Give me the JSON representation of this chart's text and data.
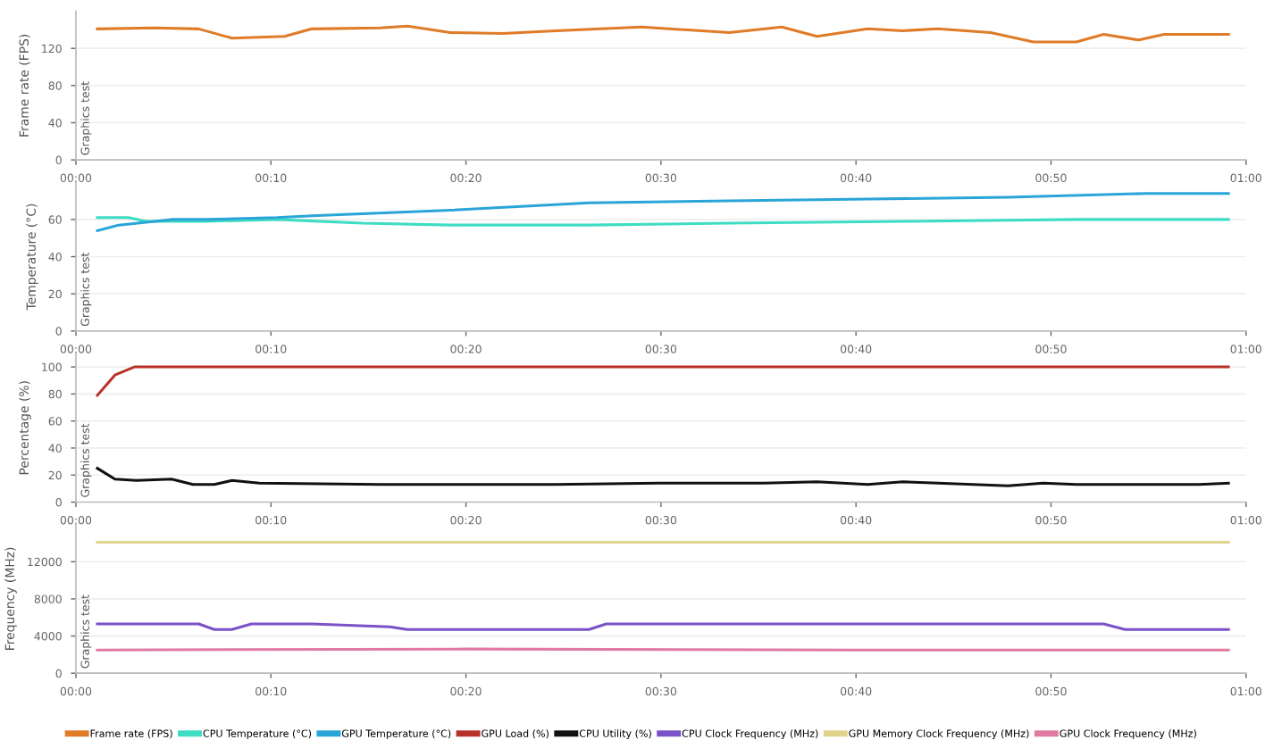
{
  "chart_data": [
    {
      "type": "line",
      "ylabel": "Frame rate (FPS)",
      "annotations": [
        "Graphics test"
      ],
      "xlim": [
        0,
        60
      ],
      "xticks": [
        {
          "value": 0,
          "label": "00:00"
        },
        {
          "value": 10,
          "label": "00:10"
        },
        {
          "value": 20,
          "label": "00:20"
        },
        {
          "value": 30,
          "label": "00:30"
        },
        {
          "value": 40,
          "label": "00:40"
        },
        {
          "value": 50,
          "label": "00:50"
        },
        {
          "value": 60,
          "label": "01:00"
        }
      ],
      "ylim": [
        0,
        160
      ],
      "yticks": [
        0,
        40,
        80,
        120
      ],
      "grid": "y",
      "legend": "bottom",
      "series": [
        {
          "name": "Frame rate (FPS)",
          "color": "#e07b28",
          "x": [
            1.1,
            4.0,
            6.3,
            8.0,
            10.7,
            12.1,
            15.6,
            17.0,
            19.2,
            21.9,
            24.6,
            29.0,
            33.5,
            36.2,
            38.0,
            40.6,
            42.4,
            44.2,
            46.9,
            49.1,
            51.3,
            52.7,
            54.5,
            55.8,
            59.1
          ],
          "values": [
            141,
            142,
            141,
            131,
            133,
            141,
            142,
            144,
            137,
            136,
            139,
            143,
            137,
            143,
            133,
            141,
            139,
            141,
            137,
            127,
            127,
            135,
            129,
            135,
            135
          ]
        }
      ]
    },
    {
      "type": "line",
      "ylabel": "Temperature (°C)",
      "annotations": [
        "Graphics test"
      ],
      "xlim": [
        0,
        60
      ],
      "xticks": [
        {
          "value": 0,
          "label": "00:00"
        },
        {
          "value": 10,
          "label": "00:10"
        },
        {
          "value": 20,
          "label": "00:20"
        },
        {
          "value": 30,
          "label": "00:30"
        },
        {
          "value": 40,
          "label": "00:40"
        },
        {
          "value": 50,
          "label": "00:50"
        },
        {
          "value": 60,
          "label": "01:00"
        }
      ],
      "ylim": [
        0,
        80
      ],
      "yticks": [
        0,
        20,
        40,
        60
      ],
      "grid": "y",
      "legend": "bottom",
      "series": [
        {
          "name": "CPU Temperature (°C)",
          "color": "#3fdcc4",
          "x": [
            1.1,
            2.7,
            3.6,
            6.7,
            10.3,
            14.7,
            19.2,
            26.3,
            33.5,
            42.4,
            51.3,
            59.1
          ],
          "values": [
            61,
            61,
            59,
            59,
            60,
            58,
            57,
            57,
            58,
            59,
            60,
            60
          ]
        },
        {
          "name": "GPU Temperature (°C)",
          "color": "#2aa5d8",
          "x": [
            1.1,
            2.2,
            4.9,
            6.7,
            10.3,
            12.1,
            19.2,
            26.3,
            33.5,
            40.6,
            47.8,
            54.9,
            59.1
          ],
          "values": [
            54,
            57,
            60,
            60,
            61,
            62,
            65,
            69,
            70,
            71,
            72,
            74,
            74
          ]
        }
      ]
    },
    {
      "type": "line",
      "ylabel": "Percentage (%)",
      "annotations": [
        "Graphics test"
      ],
      "xlim": [
        0,
        60
      ],
      "xticks": [
        {
          "value": 0,
          "label": "00:00"
        },
        {
          "value": 10,
          "label": "00:10"
        },
        {
          "value": 20,
          "label": "00:20"
        },
        {
          "value": 30,
          "label": "00:30"
        },
        {
          "value": 40,
          "label": "00:40"
        },
        {
          "value": 50,
          "label": "00:50"
        },
        {
          "value": 60,
          "label": "01:00"
        }
      ],
      "ylim": [
        0,
        110
      ],
      "yticks": [
        0,
        20,
        40,
        60,
        80,
        100
      ],
      "grid": "y",
      "legend": "bottom",
      "series": [
        {
          "name": "GPU Load (%)",
          "color": "#b8322a",
          "x": [
            1.1,
            2.0,
            3.0,
            59.1
          ],
          "values": [
            79,
            94,
            100,
            100
          ]
        },
        {
          "name": "CPU Utility (%)",
          "color": "#111111",
          "x": [
            1.1,
            2.0,
            3.1,
            4.9,
            6.0,
            7.1,
            8.0,
            9.4,
            15.6,
            24.6,
            29.9,
            35.3,
            38.0,
            40.6,
            42.4,
            44.2,
            47.8,
            49.6,
            51.3,
            54.9,
            57.6,
            59.1
          ],
          "values": [
            25,
            17,
            16,
            17,
            13,
            13,
            16,
            14,
            13,
            13,
            14,
            14,
            15,
            13,
            15,
            14,
            12,
            14,
            13,
            13,
            13,
            14
          ]
        }
      ]
    },
    {
      "type": "line",
      "ylabel": "Frequency (MHz)",
      "annotations": [
        "Graphics test"
      ],
      "xlim": [
        0,
        60
      ],
      "xticks": [
        {
          "value": 0,
          "label": "00:00"
        },
        {
          "value": 10,
          "label": "00:10"
        },
        {
          "value": 20,
          "label": "00:20"
        },
        {
          "value": 30,
          "label": "00:30"
        },
        {
          "value": 40,
          "label": "00:40"
        },
        {
          "value": 50,
          "label": "00:50"
        },
        {
          "value": 60,
          "label": "01:00"
        }
      ],
      "ylim": [
        0,
        16000
      ],
      "yticks": [
        0,
        4000,
        8000,
        12000
      ],
      "grid": "y",
      "legend": "bottom",
      "series": [
        {
          "name": "CPU Clock Frequency (MHz)",
          "color": "#7b52c8",
          "x": [
            1.1,
            6.3,
            7.1,
            8.0,
            9.0,
            12.1,
            16.1,
            17.0,
            26.3,
            27.2,
            52.7,
            53.8,
            59.1
          ],
          "values": [
            5300,
            5300,
            4700,
            4700,
            5300,
            5300,
            5000,
            4700,
            4700,
            5300,
            5300,
            4700,
            4700
          ]
        },
        {
          "name": "GPU Memory Clock Frequency (MHz)",
          "color": "#e2d38a",
          "x": [
            1.1,
            59.1
          ],
          "values": [
            14100,
            14100
          ]
        },
        {
          "name": "GPU Clock Frequency (MHz)",
          "color": "#e07aa2",
          "x": [
            1.1,
            20.0,
            40.0,
            59.1
          ],
          "values": [
            2500,
            2600,
            2500,
            2500
          ]
        }
      ]
    }
  ]
}
